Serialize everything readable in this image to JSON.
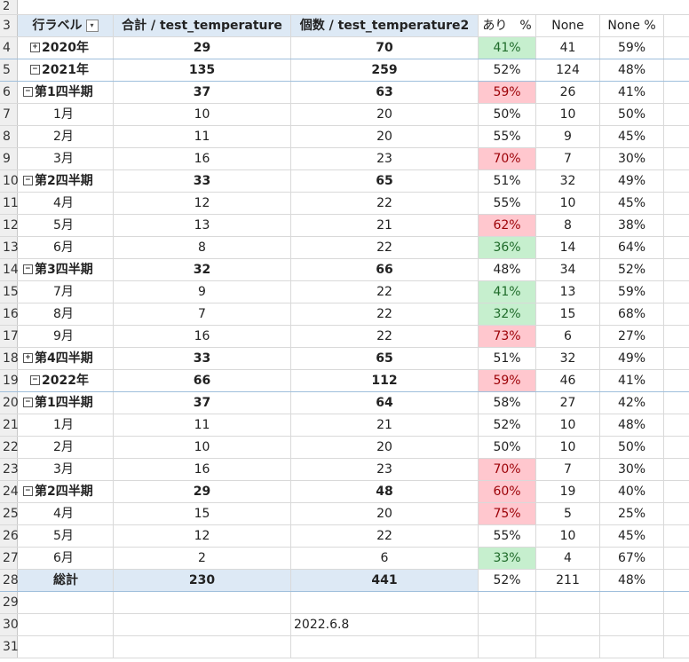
{
  "header_row": {
    "num": "3",
    "row_label": "行ラベル",
    "filter_icon": "▾",
    "sum_col": "合計 / test_temperature",
    "count_col": "個数 / test_temperature2",
    "ari_col": "あり　%",
    "none_col": "None",
    "none_pct_col": "None %"
  },
  "top_row_num": "2",
  "rows": [
    {
      "num": "4",
      "label": "2020年",
      "sign": "⊞",
      "sum": "29",
      "count": "70",
      "ari": "41%",
      "none": "41",
      "none_pct": "59%",
      "style": "year",
      "color": "green"
    },
    {
      "num": "5",
      "label": "2021年",
      "sign": "⊟",
      "sum": "135",
      "count": "259",
      "ari": "52%",
      "none": "124",
      "none_pct": "48%",
      "style": "year",
      "color": ""
    },
    {
      "num": "6",
      "label": "第1四半期",
      "sign": "⊟",
      "sum": "37",
      "count": "63",
      "ari": "59%",
      "none": "26",
      "none_pct": "41%",
      "style": "quarter",
      "color": "red"
    },
    {
      "num": "7",
      "label": "1月",
      "sign": "",
      "sum": "10",
      "count": "20",
      "ari": "50%",
      "none": "10",
      "none_pct": "50%",
      "style": "month",
      "color": ""
    },
    {
      "num": "8",
      "label": "2月",
      "sign": "",
      "sum": "11",
      "count": "20",
      "ari": "55%",
      "none": "9",
      "none_pct": "45%",
      "style": "month",
      "color": ""
    },
    {
      "num": "9",
      "label": "3月",
      "sign": "",
      "sum": "16",
      "count": "23",
      "ari": "70%",
      "none": "7",
      "none_pct": "30%",
      "style": "month",
      "color": "red"
    },
    {
      "num": "10",
      "label": "第2四半期",
      "sign": "⊟",
      "sum": "33",
      "count": "65",
      "ari": "51%",
      "none": "32",
      "none_pct": "49%",
      "style": "quarter",
      "color": ""
    },
    {
      "num": "11",
      "label": "4月",
      "sign": "",
      "sum": "12",
      "count": "22",
      "ari": "55%",
      "none": "10",
      "none_pct": "45%",
      "style": "month",
      "color": ""
    },
    {
      "num": "12",
      "label": "5月",
      "sign": "",
      "sum": "13",
      "count": "21",
      "ari": "62%",
      "none": "8",
      "none_pct": "38%",
      "style": "month",
      "color": "red"
    },
    {
      "num": "13",
      "label": "6月",
      "sign": "",
      "sum": "8",
      "count": "22",
      "ari": "36%",
      "none": "14",
      "none_pct": "64%",
      "style": "month",
      "color": "green"
    },
    {
      "num": "14",
      "label": "第3四半期",
      "sign": "⊟",
      "sum": "32",
      "count": "66",
      "ari": "48%",
      "none": "34",
      "none_pct": "52%",
      "style": "quarter",
      "color": ""
    },
    {
      "num": "15",
      "label": "7月",
      "sign": "",
      "sum": "9",
      "count": "22",
      "ari": "41%",
      "none": "13",
      "none_pct": "59%",
      "style": "month",
      "color": "green"
    },
    {
      "num": "16",
      "label": "8月",
      "sign": "",
      "sum": "7",
      "count": "22",
      "ari": "32%",
      "none": "15",
      "none_pct": "68%",
      "style": "month",
      "color": "green"
    },
    {
      "num": "17",
      "label": "9月",
      "sign": "",
      "sum": "16",
      "count": "22",
      "ari": "73%",
      "none": "6",
      "none_pct": "27%",
      "style": "month",
      "color": "red"
    },
    {
      "num": "18",
      "label": "第4四半期",
      "sign": "⊞",
      "sum": "33",
      "count": "65",
      "ari": "51%",
      "none": "32",
      "none_pct": "49%",
      "style": "quarter",
      "color": ""
    },
    {
      "num": "19",
      "label": "2022年",
      "sign": "⊟",
      "sum": "66",
      "count": "112",
      "ari": "59%",
      "none": "46",
      "none_pct": "41%",
      "style": "year",
      "color": "red"
    },
    {
      "num": "20",
      "label": "第1四半期",
      "sign": "⊟",
      "sum": "37",
      "count": "64",
      "ari": "58%",
      "none": "27",
      "none_pct": "42%",
      "style": "quarter",
      "color": ""
    },
    {
      "num": "21",
      "label": "1月",
      "sign": "",
      "sum": "11",
      "count": "21",
      "ari": "52%",
      "none": "10",
      "none_pct": "48%",
      "style": "month",
      "color": ""
    },
    {
      "num": "22",
      "label": "2月",
      "sign": "",
      "sum": "10",
      "count": "20",
      "ari": "50%",
      "none": "10",
      "none_pct": "50%",
      "style": "month",
      "color": ""
    },
    {
      "num": "23",
      "label": "3月",
      "sign": "",
      "sum": "16",
      "count": "23",
      "ari": "70%",
      "none": "7",
      "none_pct": "30%",
      "style": "month",
      "color": "red"
    },
    {
      "num": "24",
      "label": "第2四半期",
      "sign": "⊟",
      "sum": "29",
      "count": "48",
      "ari": "60%",
      "none": "19",
      "none_pct": "40%",
      "style": "quarter",
      "color": "red"
    },
    {
      "num": "25",
      "label": "4月",
      "sign": "",
      "sum": "15",
      "count": "20",
      "ari": "75%",
      "none": "5",
      "none_pct": "25%",
      "style": "month",
      "color": "red"
    },
    {
      "num": "26",
      "label": "5月",
      "sign": "",
      "sum": "12",
      "count": "22",
      "ari": "55%",
      "none": "10",
      "none_pct": "45%",
      "style": "month",
      "color": ""
    },
    {
      "num": "27",
      "label": "6月",
      "sign": "",
      "sum": "2",
      "count": "6",
      "ari": "33%",
      "none": "4",
      "none_pct": "67%",
      "style": "month",
      "color": "green"
    },
    {
      "num": "28",
      "label": "総計",
      "sign": "",
      "sum": "230",
      "count": "441",
      "ari": "52%",
      "none": "211",
      "none_pct": "48%",
      "style": "total",
      "color": ""
    }
  ],
  "extra_rows": [
    {
      "num": "29",
      "text": ""
    },
    {
      "num": "30",
      "text": "2022.6.8"
    },
    {
      "num": "31",
      "text": ""
    }
  ],
  "colors": {
    "good": "#c6efce",
    "bad": "#ffc7ce",
    "pivot_header": "#dde9f5"
  }
}
